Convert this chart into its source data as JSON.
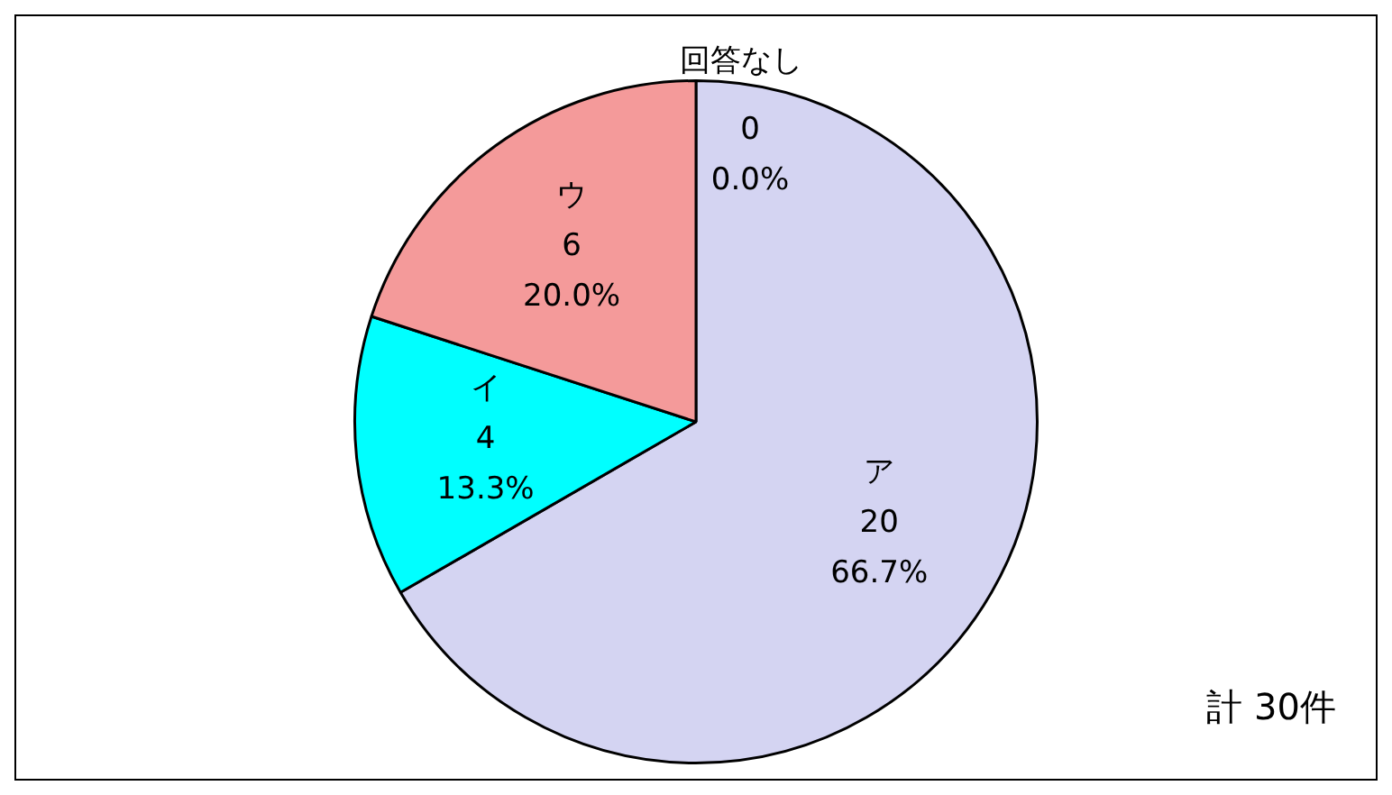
{
  "chart_data": {
    "type": "pie",
    "categories": [
      "ア",
      "イ",
      "ウ",
      "回答なし"
    ],
    "values": [
      20,
      4,
      6,
      0
    ],
    "colors": [
      "#d4d4f2",
      "#00ffff",
      "#f49a9a",
      "#ffffff"
    ],
    "value_labels": [
      "20\n66.7%",
      "4\n13.3%",
      "6\n20.0%",
      "0\n0.0%"
    ],
    "annotations": [
      "計 30件"
    ],
    "legend": false
  }
}
